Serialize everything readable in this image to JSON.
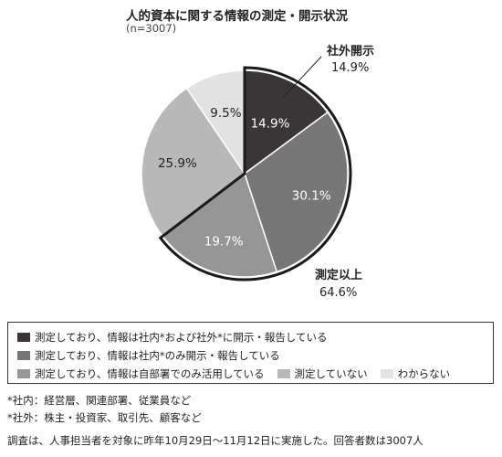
{
  "chart_data": {
    "type": "pie",
    "title": "人的資本に関する情報の測定・開示状況",
    "subtitle": "(n=3007)",
    "slices": [
      {
        "label": "測定しており、情報は社内*および社外*に開示・報告している",
        "value": 14.9,
        "display": "14.9%",
        "color": "#3a3536"
      },
      {
        "label": "測定しており、情報は社内*のみ開示・報告している",
        "value": 30.1,
        "display": "30.1%",
        "color": "#777777"
      },
      {
        "label": "測定しており、情報は自部署でのみ活用している",
        "value": 19.7,
        "display": "19.7%",
        "color": "#969696"
      },
      {
        "label": "測定していない",
        "value": 25.9,
        "display": "25.9%",
        "color": "#b8b8b8"
      },
      {
        "label": "わからない",
        "value": 9.5,
        "display": "9.5%",
        "color": "#e2e2e2"
      }
    ],
    "annotations": [
      {
        "label": "社外開示",
        "value": "14.9%"
      },
      {
        "label": "測定以上",
        "value": "64.6%"
      }
    ]
  },
  "notes": [
    "*社内：経営層、関連部署、従業員など",
    "*社外：株主・投資家、取引先、顧客など"
  ],
  "footer": "調査は、人事担当者を対象に昨年10月29日～11月12日に実施した。回答者数は3007人"
}
